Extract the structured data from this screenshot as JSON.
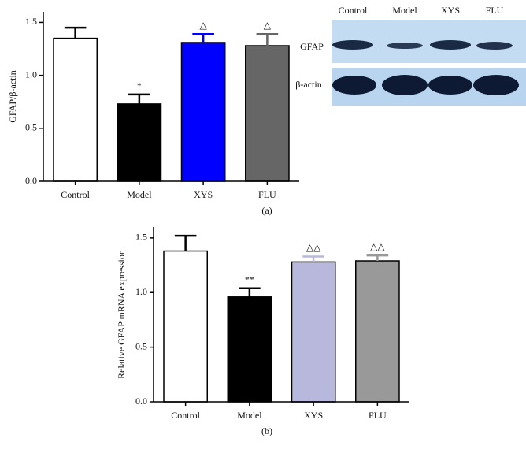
{
  "chart_data": [
    {
      "type": "bar",
      "y_label": "GFAP/β-actin",
      "panel_label": "(a)",
      "categories": [
        "Control",
        "Model",
        "XYS",
        "FLU"
      ],
      "values": [
        1.35,
        0.73,
        1.31,
        1.28
      ],
      "errors": [
        0.1,
        0.09,
        0.08,
        0.11
      ],
      "annotations": [
        null,
        "*",
        "△",
        "△"
      ],
      "colors": [
        "#ffffff",
        "#000000",
        "#0000ff",
        "#666666"
      ],
      "ylim": [
        0,
        1.6
      ],
      "yticks": [
        {
          "value": 0,
          "label": "0.0"
        },
        0.5,
        {
          "value": 1,
          "label": "1.0"
        },
        1.5
      ]
    },
    {
      "type": "bar",
      "y_label": "Relative GFAP mRNA expression",
      "panel_label": "(b)",
      "categories": [
        "Control",
        "Model",
        "XYS",
        "FLU"
      ],
      "values": [
        1.38,
        0.96,
        1.28,
        1.29
      ],
      "errors": [
        0.14,
        0.08,
        0.05,
        0.05
      ],
      "annotations": [
        null,
        "**",
        "△△",
        "△△"
      ],
      "colors": [
        "#ffffff",
        "#000000",
        "#b8b8dc",
        "#999999"
      ],
      "ylim": [
        0,
        1.6
      ],
      "yticks": [
        {
          "value": 0,
          "label": "0.0"
        },
        0.5,
        {
          "value": 1,
          "label": "1.0"
        },
        1.5
      ]
    }
  ],
  "blot": {
    "lanes": [
      "Control",
      "Model",
      "XYS",
      "FLU"
    ],
    "rows": [
      "GFAP",
      "β-actin"
    ]
  }
}
